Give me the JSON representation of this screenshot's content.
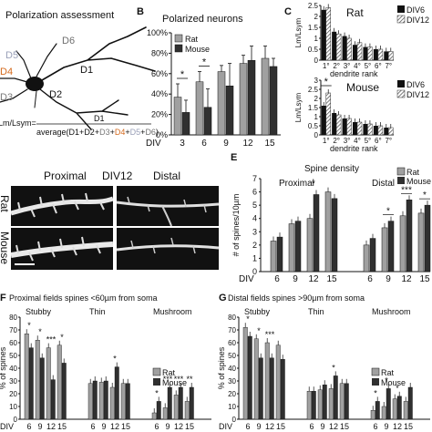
{
  "panelA": {
    "title": "Polarization assessment",
    "dendrites": [
      "D1",
      "D2",
      "D3",
      "D4",
      "D5",
      "D6"
    ],
    "formula_lhs": "Lm/Lsym=",
    "formula_num": "D1",
    "formula_den_prefix": "average(",
    "formula_den_terms": [
      "D1",
      "D2",
      "D3",
      "D4",
      "D5",
      "D6"
    ],
    "formula_plus": "+",
    "formula_den_suffix": ")",
    "colors": {
      "D1": "#111111",
      "D2": "#111111",
      "D3": "#7a7a7a",
      "D4": "#d46a1e",
      "D5": "#9aa0b8",
      "D6": "#6f6f6f"
    }
  },
  "panelB": {
    "label": "B",
    "title": "Polarized neurons",
    "chart_data": {
      "type": "bar",
      "categories": [
        "3",
        "6",
        "9",
        "12",
        "15"
      ],
      "xlabel": "DIV",
      "ylim": [
        0,
        100
      ],
      "yticks": [
        "0%",
        "20%",
        "40%",
        "60%",
        "80%",
        "100%"
      ],
      "series": [
        {
          "name": "Rat",
          "values": [
            37,
            52,
            62,
            70,
            75
          ],
          "err": [
            13,
            10,
            6,
            8,
            12
          ],
          "color": "#a0a0a0"
        },
        {
          "name": "Mouse",
          "values": [
            22,
            27,
            48,
            73,
            67
          ],
          "err": [
            12,
            18,
            22,
            14,
            8
          ],
          "color": "#303030"
        }
      ],
      "significance": [
        "*",
        "*"
      ]
    }
  },
  "panelC": {
    "label": "C",
    "ylabel": "Lm/Lsym",
    "xlabel": "dendrite rank",
    "categories": [
      "1°",
      "2°",
      "3°",
      "4°",
      "5°",
      "6°",
      "7°"
    ],
    "rat": {
      "title": "Rat",
      "ylim": [
        0,
        2.5
      ],
      "yticks": [
        "0",
        "0.5",
        "1",
        "1.5",
        "2",
        "2.5"
      ],
      "legend": [
        "DIV6",
        "DIV12"
      ],
      "values6": [
        2.3,
        1.3,
        1.1,
        0.7,
        0.6,
        0.5,
        0.4
      ],
      "values12": [
        2.4,
        1.2,
        1.0,
        0.8,
        0.6,
        0.5,
        0.4
      ]
    },
    "mouse": {
      "title": "Mouse",
      "ylim": [
        0,
        3
      ],
      "yticks": [
        "0",
        "0.5",
        "1",
        "1.5",
        "2",
        "2.5",
        "3"
      ],
      "legend": [
        "DIV6",
        "DIV12"
      ],
      "values6": [
        1.6,
        1.2,
        0.9,
        0.7,
        0.6,
        0.5,
        0.4
      ],
      "values12": [
        2.3,
        1.1,
        0.9,
        0.7,
        0.6,
        0.5,
        0.4
      ],
      "significance": "*"
    }
  },
  "panelD": {
    "proximal": "Proximal",
    "div": "DIV12",
    "distal": "Distal",
    "rat": "Rat",
    "mouse": "Mouse"
  },
  "panelE": {
    "label": "E",
    "title": "Spine density",
    "proximal": "Proximal",
    "distal": "Distal",
    "ylabel": "# of spines/10µm",
    "xlabel": "DIV",
    "yticks": [
      "0",
      "1",
      "2",
      "3",
      "4",
      "5",
      "6",
      "7"
    ],
    "ylim": [
      0,
      7
    ],
    "categories": [
      "6",
      "9",
      "12",
      "15"
    ],
    "legend": [
      "Rat",
      "Mouse"
    ],
    "proximal_data": {
      "rat": [
        2.3,
        3.6,
        4.0,
        6.0
      ],
      "mouse": [
        2.6,
        3.8,
        5.8,
        5.5
      ]
    },
    "distal_data": {
      "rat": [
        2.0,
        3.3,
        4.2,
        4.4
      ],
      "mouse": [
        2.5,
        3.8,
        5.4,
        5.0
      ]
    },
    "significance_proximal": [
      "*"
    ],
    "significance_distal": [
      "*",
      "***",
      "*"
    ]
  },
  "panelF": {
    "label": "F",
    "title": "Proximal fields  spines <60µm from soma",
    "groups": [
      "Stubby",
      "Thin",
      "Mushroom"
    ],
    "ylabel": "% of spines",
    "xlabel": "DIV",
    "categories": [
      "6",
      "9",
      "12",
      "15"
    ],
    "yticks": [
      "0",
      "10",
      "20",
      "30",
      "40",
      "50",
      "60",
      "70",
      "80"
    ],
    "legend": [
      "Rat",
      "Mouse"
    ],
    "stubby": {
      "rat": [
        67,
        62,
        56,
        58
      ],
      "mouse": [
        56,
        48,
        31,
        44
      ]
    },
    "thin": {
      "rat": [
        28,
        29,
        25,
        28
      ],
      "mouse": [
        30,
        30,
        41,
        28
      ]
    },
    "mushroom": {
      "rat": [
        5,
        9,
        19,
        14
      ],
      "mouse": [
        14,
        25,
        25,
        25
      ]
    },
    "sig_stubby": [
      "*",
      "*",
      "***",
      "*"
    ],
    "sig_thin": [
      "*"
    ],
    "sig_mushroom": [
      "*",
      "***",
      "***",
      "**"
    ]
  },
  "panelG": {
    "label": "G",
    "title": "Distal fields  spines >90µm from soma",
    "groups": [
      "Stubby",
      "Thin",
      "Mushroom"
    ],
    "ylabel": "% of spines",
    "xlabel": "DIV",
    "categories": [
      "6",
      "9",
      "12",
      "15"
    ],
    "yticks": [
      "0",
      "10",
      "20",
      "30",
      "40",
      "50",
      "60",
      "70",
      "80"
    ],
    "legend": [
      "Rat",
      "Mouse"
    ],
    "stubby": {
      "rat": [
        72,
        63,
        60,
        58
      ],
      "mouse": [
        65,
        48,
        48,
        47
      ]
    },
    "thin": {
      "rat": [
        22,
        23,
        24,
        28
      ],
      "mouse": [
        22,
        27,
        34,
        28
      ]
    },
    "mushroom": {
      "rat": [
        7,
        10,
        16,
        14
      ],
      "mouse": [
        14,
        24,
        18,
        25
      ]
    },
    "sig_stubby": [
      "*",
      "*",
      "***"
    ],
    "sig_thin": [
      "*"
    ],
    "sig_mushroom": [
      "*",
      "*",
      "*"
    ]
  }
}
